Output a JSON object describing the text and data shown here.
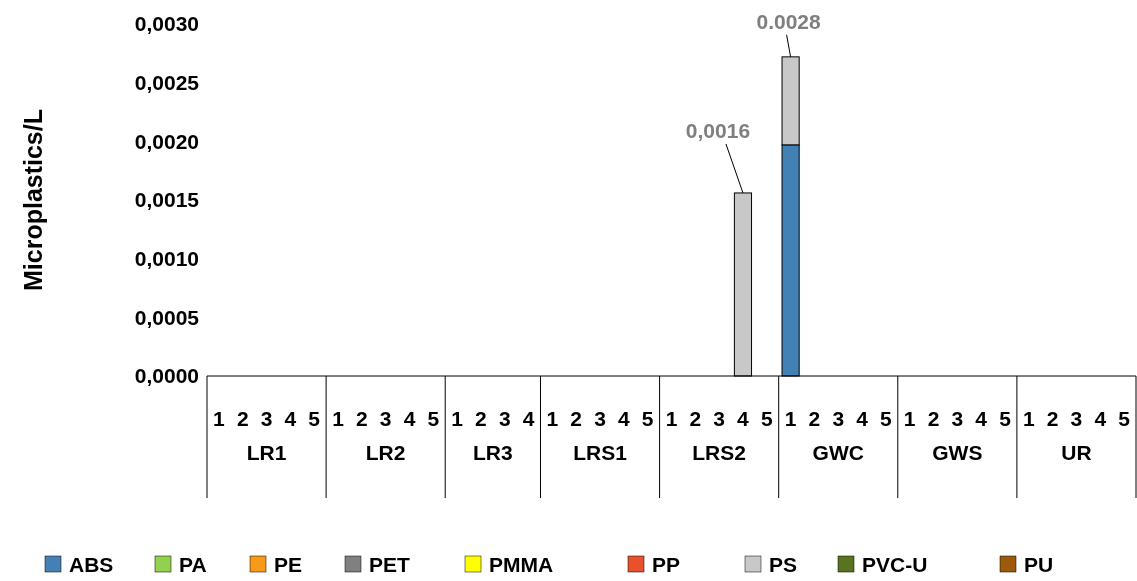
{
  "chart_data": {
    "type": "bar",
    "stacked": true,
    "ylabel": "Microplastics/L",
    "categories": [
      "1",
      "2",
      "3",
      "4",
      "5",
      "1",
      "2",
      "3",
      "4",
      "5",
      "1",
      "2",
      "3",
      "4",
      "1",
      "2",
      "3",
      "4",
      "5",
      "1",
      "2",
      "3",
      "4",
      "5",
      "1",
      "2",
      "3",
      "4",
      "5",
      "1",
      "2",
      "3",
      "4",
      "5",
      "1",
      "2",
      "3",
      "4",
      "5"
    ],
    "annotations": [
      "LR1",
      "LR2",
      "LR3",
      "LRS1",
      "LRS2",
      "GWC",
      "GWS",
      "UR"
    ],
    "ylim": [
      0,
      0.003
    ],
    "yticks": [
      {
        "value": 0,
        "label": "0,0000"
      },
      {
        "value": 0.0005,
        "label": "0,0005"
      },
      {
        "value": 0.001,
        "label": "0,0010"
      },
      {
        "value": 0.0015,
        "label": "0,0015"
      },
      {
        "value": 0.002,
        "label": "0,0020"
      },
      {
        "value": 0.0025,
        "label": "0,0025"
      },
      {
        "value": 0.003,
        "label": "0,0030"
      }
    ],
    "totals": [
      null,
      null,
      null,
      null,
      null,
      null,
      null,
      null,
      null,
      null,
      null,
      null,
      null,
      null,
      null,
      null,
      null,
      null,
      null,
      null,
      null,
      null,
      "0,0016",
      null,
      "0.0028",
      null,
      null,
      null,
      null,
      null,
      null,
      null,
      null,
      null,
      null,
      null,
      null,
      null,
      null
    ],
    "legend": "bottom",
    "grid": false,
    "series": [
      {
        "name": "ABS",
        "color": "#4381b5",
        "values": [
          null,
          null,
          null,
          null,
          null,
          null,
          null,
          null,
          null,
          null,
          null,
          null,
          null,
          null,
          null,
          null,
          null,
          null,
          null,
          null,
          null,
          null,
          null,
          null,
          0.00197,
          null,
          null,
          null,
          null,
          null,
          null,
          null,
          null,
          null,
          null,
          null,
          null,
          null,
          null
        ]
      },
      {
        "name": "PA",
        "color": "#92d050",
        "values": [
          null,
          null,
          null,
          null,
          null,
          null,
          null,
          null,
          null,
          null,
          null,
          null,
          null,
          null,
          null,
          null,
          null,
          null,
          null,
          null,
          null,
          null,
          null,
          null,
          null,
          null,
          null,
          null,
          null,
          null,
          null,
          null,
          null,
          null,
          null,
          null,
          null,
          null,
          null
        ]
      },
      {
        "name": "PE",
        "color": "#f79a1a",
        "values": [
          null,
          null,
          null,
          null,
          null,
          null,
          null,
          null,
          null,
          null,
          null,
          null,
          null,
          null,
          null,
          null,
          null,
          null,
          null,
          null,
          null,
          null,
          null,
          null,
          null,
          null,
          null,
          null,
          null,
          null,
          null,
          null,
          null,
          null,
          null,
          null,
          null,
          null,
          null
        ]
      },
      {
        "name": "PET",
        "color": "#808080",
        "values": [
          null,
          null,
          null,
          null,
          null,
          null,
          null,
          null,
          null,
          null,
          null,
          null,
          null,
          null,
          null,
          null,
          null,
          null,
          null,
          null,
          null,
          null,
          null,
          null,
          null,
          null,
          null,
          null,
          null,
          null,
          null,
          null,
          null,
          null,
          null,
          null,
          null,
          null,
          null
        ]
      },
      {
        "name": "PMMA",
        "color": "#ffff00",
        "values": [
          null,
          null,
          null,
          null,
          null,
          null,
          null,
          null,
          null,
          null,
          null,
          null,
          null,
          null,
          null,
          null,
          null,
          null,
          null,
          null,
          null,
          null,
          null,
          null,
          null,
          null,
          null,
          null,
          null,
          null,
          null,
          null,
          null,
          null,
          null,
          null,
          null,
          null,
          null
        ]
      },
      {
        "name": "PP",
        "color": "#e8512b",
        "values": [
          null,
          null,
          null,
          null,
          null,
          null,
          null,
          null,
          null,
          null,
          null,
          null,
          null,
          null,
          null,
          null,
          null,
          null,
          null,
          null,
          null,
          null,
          null,
          null,
          null,
          null,
          null,
          null,
          null,
          null,
          null,
          null,
          null,
          null,
          null,
          null,
          null,
          null,
          null
        ]
      },
      {
        "name": "PS",
        "color": "#c8c8c8",
        "values": [
          null,
          null,
          null,
          null,
          null,
          null,
          null,
          null,
          null,
          null,
          null,
          null,
          null,
          null,
          null,
          null,
          null,
          null,
          null,
          null,
          null,
          null,
          0.00156,
          null,
          0.00075,
          null,
          null,
          null,
          null,
          null,
          null,
          null,
          null,
          null,
          null,
          null,
          null,
          null,
          null
        ]
      },
      {
        "name": "PVC-U",
        "color": "#5a7321",
        "values": [
          null,
          null,
          null,
          null,
          null,
          null,
          null,
          null,
          null,
          null,
          null,
          null,
          null,
          null,
          null,
          null,
          null,
          null,
          null,
          null,
          null,
          null,
          null,
          null,
          null,
          null,
          null,
          null,
          null,
          null,
          null,
          null,
          null,
          null,
          null,
          null,
          null,
          null,
          null
        ]
      },
      {
        "name": "PU",
        "color": "#9c5a0d",
        "values": [
          null,
          null,
          null,
          null,
          null,
          null,
          null,
          null,
          null,
          null,
          null,
          null,
          null,
          null,
          null,
          null,
          null,
          null,
          null,
          null,
          null,
          null,
          null,
          null,
          null,
          null,
          null,
          null,
          null,
          null,
          null,
          null,
          null,
          null,
          null,
          null,
          null,
          null,
          null
        ]
      }
    ]
  }
}
